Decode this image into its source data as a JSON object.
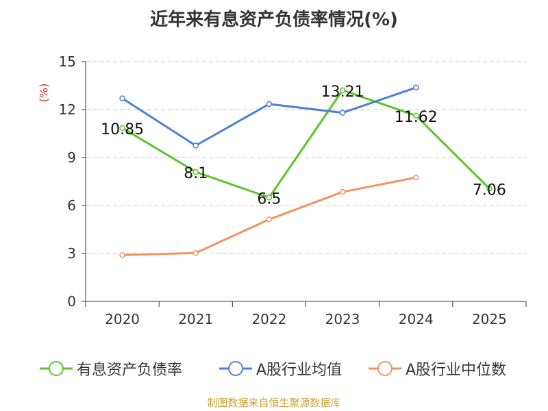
{
  "title": "近年来有息资产负债率情况(%)",
  "unit_label": "(%)",
  "source": "制图数据来自恒生聚源数据库",
  "chart_data": {
    "type": "line",
    "title": "近年来有息资产负债率情况(%)",
    "ylabel": "(%)",
    "xlabel": "",
    "categories": [
      "2020",
      "2021",
      "2022",
      "2023",
      "2024",
      "2025"
    ],
    "ylim": [
      0,
      15
    ],
    "yticks": [
      0,
      3,
      6,
      9,
      12,
      15
    ],
    "grid": true,
    "legend_position": "bottom",
    "series": [
      {
        "name": "有息资产负债率",
        "color": "#5ac528",
        "values": [
          10.85,
          8.1,
          6.5,
          13.21,
          11.62,
          7.06
        ],
        "labels": [
          "10.85",
          "8.1",
          "6.5",
          "13.21",
          "11.62",
          "7.06"
        ]
      },
      {
        "name": "A股行业均值",
        "color": "#4a7fd8",
        "values": [
          12.7,
          9.75,
          12.35,
          11.8,
          13.38,
          null
        ],
        "labels": []
      },
      {
        "name": "A股行业中位数",
        "color": "#f59160",
        "values": [
          2.9,
          3.03,
          5.13,
          6.85,
          7.75,
          null
        ],
        "labels": []
      }
    ]
  }
}
